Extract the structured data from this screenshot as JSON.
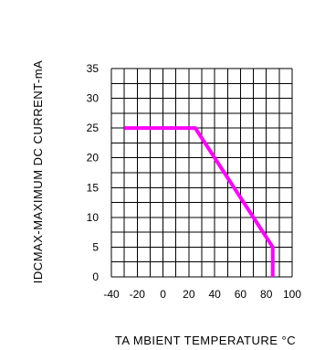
{
  "chart_data": {
    "type": "line",
    "title": "",
    "xlabel": "TA MBIENT TEMPERATURE °C",
    "ylabel": "IDCMAX-MAXIMUM DC CURRENT-mA",
    "xlim": [
      -40,
      100
    ],
    "ylim": [
      0,
      35
    ],
    "x_ticks": [
      -40,
      -20,
      0,
      20,
      40,
      60,
      80,
      100
    ],
    "y_ticks": [
      0,
      5,
      10,
      15,
      20,
      25,
      30,
      35
    ],
    "grid": true,
    "series_color": "#ff00ff",
    "series": [
      {
        "x": [
          -30,
          25,
          85,
          85
        ],
        "y": [
          25,
          25,
          5,
          0
        ]
      }
    ]
  }
}
